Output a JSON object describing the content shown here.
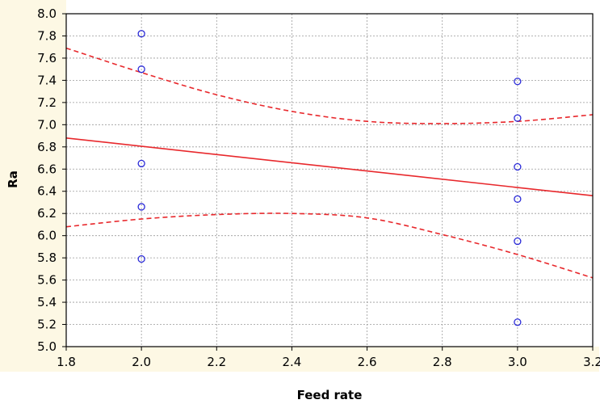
{
  "chart_data": {
    "type": "scatter",
    "title": "",
    "xlabel": "Feed rate",
    "ylabel": "Ra",
    "xlim": [
      1.8,
      3.2
    ],
    "ylim": [
      5.0,
      8.0
    ],
    "x_ticks": [
      "1.8",
      "2.0",
      "2.2",
      "2.4",
      "2.6",
      "2.8",
      "3.0",
      "3.2"
    ],
    "y_ticks": [
      "5.0",
      "5.2",
      "5.4",
      "5.6",
      "5.8",
      "6.0",
      "6.2",
      "6.4",
      "6.6",
      "6.8",
      "7.0",
      "7.2",
      "7.4",
      "7.6",
      "7.8",
      "8.0"
    ],
    "grid": true,
    "points": [
      {
        "x": 2.0,
        "y": 7.82
      },
      {
        "x": 2.0,
        "y": 7.5
      },
      {
        "x": 2.0,
        "y": 6.65
      },
      {
        "x": 2.0,
        "y": 6.26
      },
      {
        "x": 2.0,
        "y": 5.79
      },
      {
        "x": 3.0,
        "y": 7.39
      },
      {
        "x": 3.0,
        "y": 7.06
      },
      {
        "x": 3.0,
        "y": 6.62
      },
      {
        "x": 3.0,
        "y": 6.33
      },
      {
        "x": 3.0,
        "y": 5.95
      },
      {
        "x": 3.0,
        "y": 5.22
      }
    ],
    "regression_line": {
      "x": [
        1.8,
        3.2
      ],
      "y": [
        6.88,
        6.36
      ]
    },
    "upper_confidence": {
      "x": [
        1.8,
        2.0,
        2.2,
        2.4,
        2.6,
        2.8,
        3.0,
        3.2
      ],
      "y": [
        7.69,
        7.47,
        7.27,
        7.12,
        7.03,
        7.01,
        7.03,
        7.09
      ]
    },
    "lower_confidence": {
      "x": [
        1.8,
        2.0,
        2.2,
        2.4,
        2.6,
        2.8,
        3.0,
        3.2
      ],
      "y": [
        6.08,
        6.15,
        6.19,
        6.2,
        6.16,
        6.01,
        5.83,
        5.62
      ]
    },
    "colors": {
      "points": "#2b2bd8",
      "fit_line": "#e8282c",
      "confidence": "#e8282c",
      "grid": "#9a9a9a",
      "tick_band": "#fdf8e4"
    }
  }
}
